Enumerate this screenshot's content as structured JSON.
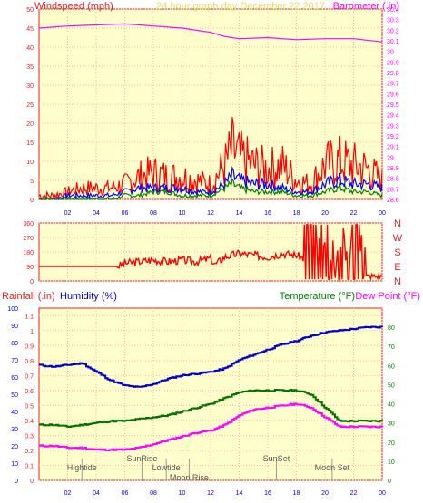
{
  "header": {
    "left_label": "Windspeed (mph)",
    "center_label": "24 hour graph day   December 22 2017",
    "right_label": "Barometer (.in)"
  },
  "colors": {
    "plot_bg": "#ffffcc",
    "grid": "#ffb0b0",
    "axis": "#e02020",
    "wind_gust": "#ff0000",
    "wind_avg": "#0000ff",
    "wind_min": "#008000",
    "barometer": "#ff00ff",
    "humidity": "#0000cc",
    "temperature": "#007000",
    "dew_point": "#ff00ff",
    "direction": "#ff0000",
    "center_label": "#e0e060"
  },
  "x_ticks": [
    "02",
    "04",
    "06",
    "08",
    "10",
    "12",
    "14",
    "16",
    "18",
    "20",
    "22",
    "00"
  ],
  "compass_labels": [
    "N",
    "W",
    "S",
    "E",
    "N"
  ],
  "bottom_headers": {
    "rainfall": "Rainfall (.in)",
    "humidity": "Humidity (%)",
    "temperature": "Temperature (°F)",
    "dew_point": "Dew Point (°F)"
  },
  "annotations": [
    {
      "text": "Hightide",
      "x": 3.0,
      "row": 1
    },
    {
      "text": "SunRise",
      "x": 7.2,
      "row": 0
    },
    {
      "text": "Lowtide",
      "x": 8.9,
      "row": 1
    },
    {
      "text": "Moon Rise",
      "x": 10.5,
      "row": 2
    },
    {
      "text": "SunSet",
      "x": 16.6,
      "row": 0
    },
    {
      "text": "Moon Set",
      "x": 20.5,
      "row": 1
    }
  ],
  "chart_data": [
    {
      "type": "line",
      "name": "windspeed_barometer",
      "x_range": [
        0,
        24
      ],
      "y_left": {
        "label": "Windspeed (mph)",
        "ylim": [
          0,
          50
        ],
        "ticks": [
          0,
          5,
          10,
          15,
          20,
          25,
          30,
          35,
          40,
          45,
          50
        ]
      },
      "y_right": {
        "label": "Barometer (.in)",
        "ylim": [
          28.6,
          30.4
        ],
        "ticks": [
          "28.6",
          "28.7",
          "28.8",
          "28.9",
          "29",
          "29.1",
          "29.2",
          "29.3",
          "29.4",
          "29.5",
          "29.6",
          "29.7",
          "29.8",
          "29.9",
          "30",
          "30.1",
          "30.2",
          "30.3",
          "30.4"
        ]
      },
      "wind_gust": {
        "x": [
          0,
          1,
          2,
          3,
          4,
          5,
          6,
          7,
          8,
          9,
          10,
          11,
          12,
          13,
          13.5,
          14,
          15,
          16,
          17,
          18,
          19,
          20,
          21,
          22,
          23,
          24
        ],
        "y": [
          1,
          1,
          2,
          3,
          3,
          3,
          4,
          6,
          7,
          6,
          6,
          5,
          4,
          9,
          13,
          11,
          9,
          8,
          9,
          5,
          4,
          9,
          10,
          9,
          8,
          5
        ]
      },
      "wind_avg": {
        "x": [
          0,
          1,
          2,
          3,
          4,
          5,
          6,
          7,
          8,
          9,
          10,
          11,
          12,
          13,
          13.5,
          14,
          15,
          16,
          17,
          18,
          19,
          20,
          21,
          22,
          23,
          24
        ],
        "y": [
          0,
          0,
          1,
          1,
          1,
          1,
          2,
          3,
          3,
          3,
          3,
          2,
          2,
          4,
          6,
          5,
          4,
          4,
          3,
          2,
          2,
          4,
          5,
          4,
          4,
          3
        ]
      },
      "wind_min": {
        "x": [
          0,
          1,
          2,
          3,
          4,
          5,
          6,
          7,
          8,
          9,
          10,
          11,
          12,
          13,
          13.5,
          14,
          15,
          16,
          17,
          18,
          19,
          20,
          21,
          22,
          23,
          24
        ],
        "y": [
          0,
          0,
          0,
          0,
          0,
          0,
          1,
          1,
          2,
          2,
          1,
          1,
          1,
          3,
          4,
          3,
          2,
          2,
          2,
          1,
          1,
          2,
          3,
          2,
          2,
          1
        ]
      },
      "barometer": {
        "x": [
          0,
          2,
          4,
          6,
          7,
          8,
          10,
          12,
          13,
          14,
          16,
          18,
          20,
          22,
          24
        ],
        "y": [
          30.22,
          30.24,
          30.25,
          30.26,
          30.25,
          30.24,
          30.22,
          30.18,
          30.14,
          30.12,
          30.13,
          30.11,
          30.12,
          30.12,
          30.09
        ]
      }
    },
    {
      "type": "line",
      "name": "wind_direction",
      "x_range": [
        0,
        24
      ],
      "ylim": [
        0,
        360
      ],
      "y_ticks": [
        0,
        90,
        180,
        270,
        360
      ],
      "direction": {
        "x": [
          0,
          5.5,
          6,
          7,
          8,
          9,
          10,
          11,
          12,
          12.3,
          13,
          14,
          15,
          16,
          17,
          18,
          18.5,
          19,
          20,
          21,
          22,
          23,
          24
        ],
        "y": [
          90,
          90,
          110,
          120,
          130,
          120,
          130,
          120,
          140,
          100,
          150,
          170,
          160,
          150,
          170,
          160,
          140,
          30,
          200,
          50,
          330,
          30,
          20
        ]
      }
    },
    {
      "type": "line",
      "name": "rain_humidity_temp_dew",
      "x_range": [
        0,
        24
      ],
      "y_left_rain": {
        "label": "Rainfall (.in)",
        "ylim": [
          0,
          1.15
        ],
        "ticks": [
          "0",
          "0.1",
          "0.2",
          "0.3",
          "0.4",
          "0.5",
          "0.6",
          "0.7",
          "0.8",
          "0.9",
          "1",
          "1.1"
        ]
      },
      "y_left_humidity": {
        "label": "Humidity (%)",
        "ylim": [
          0,
          100
        ],
        "ticks": [
          0,
          10,
          20,
          30,
          40,
          50,
          60,
          70,
          80,
          90,
          100
        ]
      },
      "y_right_temp": {
        "label": "Temperature (°F)",
        "ylim": [
          0,
          90
        ],
        "ticks": [
          0,
          10,
          20,
          30,
          40,
          50,
          60,
          70,
          80
        ]
      },
      "humidity": {
        "x": [
          0,
          1,
          2,
          3,
          4,
          5,
          6,
          7,
          8,
          9,
          10,
          11,
          12,
          13,
          14,
          15,
          16,
          17,
          18,
          19,
          20,
          21,
          22,
          23,
          24
        ],
        "y": [
          67,
          66,
          67,
          68,
          63,
          58,
          55,
          54,
          56,
          59,
          61,
          62,
          63,
          65,
          70,
          73,
          76,
          79,
          81,
          84,
          86,
          87,
          88,
          89,
          89
        ]
      },
      "temperature": {
        "x": [
          0,
          1,
          2,
          3,
          4,
          5,
          6,
          7,
          8,
          9,
          10,
          11,
          12,
          13,
          14,
          15,
          16,
          17,
          18,
          19,
          20,
          21,
          22,
          23,
          24
        ],
        "y": [
          29,
          29,
          28,
          29,
          30,
          31,
          31,
          32,
          33,
          34,
          36,
          38,
          40,
          43,
          46,
          47,
          47,
          47,
          47,
          45,
          38,
          31,
          31,
          31,
          31
        ]
      },
      "dew_point": {
        "x": [
          0,
          1,
          2,
          3,
          4,
          5,
          6,
          7,
          8,
          9,
          10,
          11,
          12,
          13,
          14,
          15,
          16,
          17,
          18,
          19,
          20,
          21,
          22,
          23,
          24
        ],
        "y": [
          18,
          18,
          17,
          17,
          16,
          16,
          16,
          17,
          19,
          21,
          23,
          25,
          26,
          29,
          34,
          37,
          38,
          39,
          40,
          38,
          33,
          28,
          28,
          28,
          28
        ]
      }
    }
  ]
}
